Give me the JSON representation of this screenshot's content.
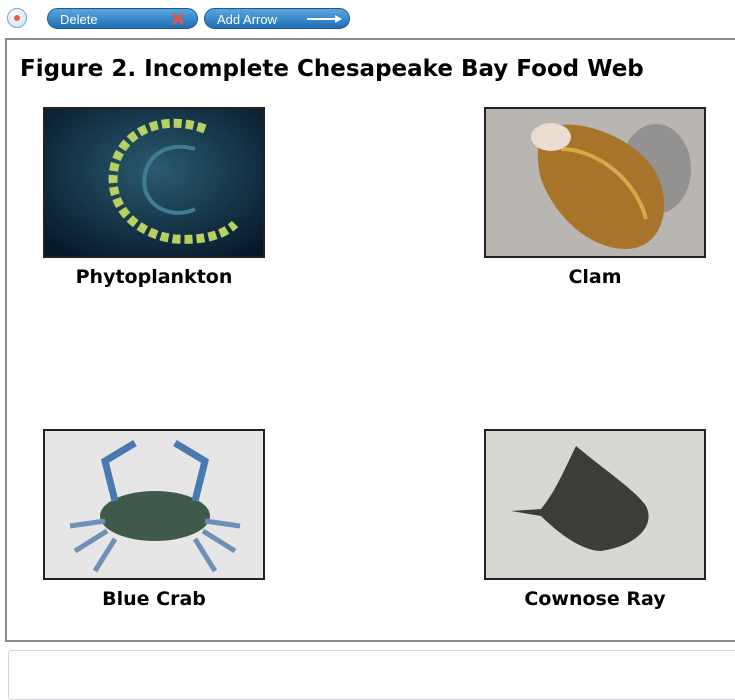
{
  "toolbar": {
    "buttons": [
      "Delete",
      "Add Arrow"
    ]
  },
  "figure": {
    "title": "Figure 2. Incomplete Chesapeake Bay Food Web",
    "organisms": [
      "Phytoplankton",
      "Clam",
      "Blue Crab",
      "Cownose Ray"
    ]
  }
}
